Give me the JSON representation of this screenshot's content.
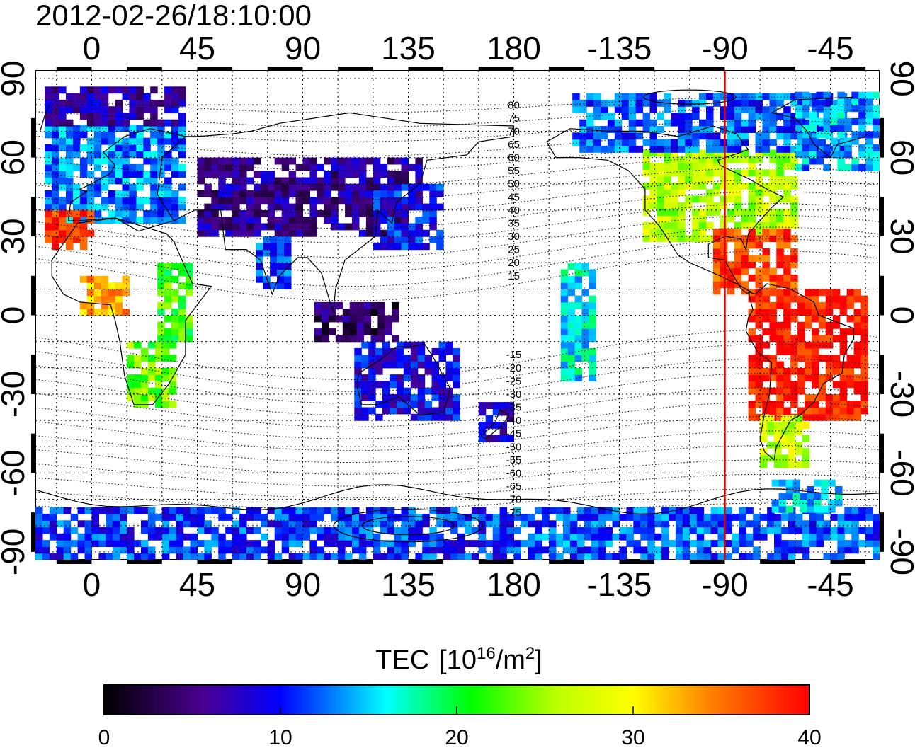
{
  "title": "2012-02-26/18:10:00",
  "map": {
    "x_ticks": [
      "0",
      "45",
      "90",
      "135",
      "180",
      "-135",
      "-90",
      "-45"
    ],
    "x_tick_lons": [
      0,
      45,
      90,
      135,
      180,
      225,
      270,
      315
    ],
    "y_ticks": [
      "90",
      "60",
      "30",
      "0",
      "-30",
      "-60",
      "-90"
    ],
    "y_tick_lats": [
      90,
      60,
      30,
      0,
      -30,
      -60,
      -90
    ],
    "lon_range": [
      -24,
      336
    ],
    "lat_range": [
      -93,
      93
    ],
    "grid": true,
    "marker_line": {
      "lon": -90,
      "color": "#e00000"
    },
    "contour_labels": [
      {
        "text": "80",
        "lon": 180,
        "lat": 80
      },
      {
        "text": "75",
        "lon": 180,
        "lat": 75
      },
      {
        "text": "70",
        "lon": 180,
        "lat": 70
      },
      {
        "text": "65",
        "lon": 180,
        "lat": 65
      },
      {
        "text": "60",
        "lon": 180,
        "lat": 60
      },
      {
        "text": "55",
        "lon": 180,
        "lat": 55
      },
      {
        "text": "50",
        "lon": 180,
        "lat": 50
      },
      {
        "text": "45",
        "lon": 180,
        "lat": 45
      },
      {
        "text": "40",
        "lon": 180,
        "lat": 40
      },
      {
        "text": "35",
        "lon": 180,
        "lat": 35
      },
      {
        "text": "30",
        "lon": 180,
        "lat": 30
      },
      {
        "text": "25",
        "lon": 180,
        "lat": 25
      },
      {
        "text": "20",
        "lon": 180,
        "lat": 20
      },
      {
        "text": "15",
        "lon": 180,
        "lat": 15
      },
      {
        "text": "-15",
        "lon": 180,
        "lat": -15
      },
      {
        "text": "-20",
        "lon": 180,
        "lat": -20
      },
      {
        "text": "-25",
        "lon": 180,
        "lat": -25
      },
      {
        "text": "-30",
        "lon": 180,
        "lat": -30
      },
      {
        "text": "-35",
        "lon": 180,
        "lat": -35
      },
      {
        "text": "-40",
        "lon": 180,
        "lat": -40
      },
      {
        "text": "-45",
        "lon": 180,
        "lat": -45
      },
      {
        "text": "-50",
        "lon": 180,
        "lat": -50
      },
      {
        "text": "-55",
        "lon": 180,
        "lat": -55
      },
      {
        "text": "-60",
        "lon": 180,
        "lat": -60
      },
      {
        "text": "-65",
        "lon": 180,
        "lat": -65
      },
      {
        "text": "-70",
        "lon": 180,
        "lat": -70
      },
      {
        "text": "-75",
        "lon": 180,
        "lat": -75
      }
    ],
    "tec_regions": [
      {
        "name": "north-america",
        "lon": [
          235,
          300
        ],
        "lat": [
          28,
          62
        ],
        "tec": 26
      },
      {
        "name": "canada-north",
        "lon": [
          205,
          320
        ],
        "lat": [
          62,
          84
        ],
        "tec": 12
      },
      {
        "name": "greenland-atlantic",
        "lon": [
          300,
          336
        ],
        "lat": [
          55,
          85
        ],
        "tec": 14
      },
      {
        "name": "central-america",
        "lon": [
          265,
          300
        ],
        "lat": [
          8,
          32
        ],
        "tec": 37
      },
      {
        "name": "south-america",
        "lon": [
          280,
          330
        ],
        "lat": [
          -40,
          8
        ],
        "tec": 39
      },
      {
        "name": "patagonia",
        "lon": [
          285,
          305
        ],
        "lat": [
          -58,
          -40
        ],
        "tec": 27
      },
      {
        "name": "europe",
        "lon": [
          -20,
          40
        ],
        "lat": [
          35,
          72
        ],
        "tec": 13
      },
      {
        "name": "scandinavia",
        "lon": [
          -20,
          40
        ],
        "lat": [
          72,
          85
        ],
        "tec": 7
      },
      {
        "name": "iberia-morocco",
        "lon": [
          -20,
          0
        ],
        "lat": [
          25,
          38
        ],
        "tec": 38
      },
      {
        "name": "west-africa",
        "lon": [
          -5,
          15
        ],
        "lat": [
          0,
          15
        ],
        "tec": 33
      },
      {
        "name": "east-africa",
        "lon": [
          28,
          42
        ],
        "lat": [
          -10,
          18
        ],
        "tec": 22
      },
      {
        "name": "southern-africa",
        "lon": [
          15,
          35
        ],
        "lat": [
          -35,
          -10
        ],
        "tec": 23
      },
      {
        "name": "asia",
        "lon": [
          45,
          140
        ],
        "lat": [
          30,
          60
        ],
        "tec": 6
      },
      {
        "name": "east-asia",
        "lon": [
          120,
          150
        ],
        "lat": [
          25,
          50
        ],
        "tec": 10
      },
      {
        "name": "india",
        "lon": [
          70,
          85
        ],
        "lat": [
          10,
          30
        ],
        "tec": 12
      },
      {
        "name": "indonesia",
        "lon": [
          95,
          130
        ],
        "lat": [
          -10,
          5
        ],
        "tec": 4
      },
      {
        "name": "australia",
        "lon": [
          112,
          155
        ],
        "lat": [
          -40,
          -12
        ],
        "tec": 9
      },
      {
        "name": "new-zealand",
        "lon": [
          165,
          180
        ],
        "lat": [
          -48,
          -35
        ],
        "tec": 8
      },
      {
        "name": "pacific-islands",
        "lon": [
          200,
          215
        ],
        "lat": [
          -25,
          20
        ],
        "tec": 16
      },
      {
        "name": "antarctica-east",
        "lon": [
          -24,
          180
        ],
        "lat": [
          -93,
          -75
        ],
        "tec": 11
      },
      {
        "name": "antarctica-west",
        "lon": [
          180,
          336
        ],
        "lat": [
          -93,
          -75
        ],
        "tec": 12
      },
      {
        "name": "antarctic-peninsula",
        "lon": [
          290,
          320
        ],
        "lat": [
          -75,
          -63
        ],
        "tec": 15
      }
    ]
  },
  "colorbar": {
    "label": "TEC",
    "unit_prefix": "[10",
    "unit_exp": "16",
    "unit_mid": "/m",
    "unit_exp2": "2",
    "unit_suffix": "]",
    "min": 0,
    "max": 40,
    "ticks": [
      "0",
      "10",
      "20",
      "30",
      "40"
    ],
    "tick_values": [
      0,
      10,
      20,
      30,
      40
    ],
    "colors": [
      "#000000",
      "#4a0090",
      "#0000ff",
      "#00ffff",
      "#00ff00",
      "#ffff00",
      "#ff8000",
      "#ff0000"
    ]
  }
}
